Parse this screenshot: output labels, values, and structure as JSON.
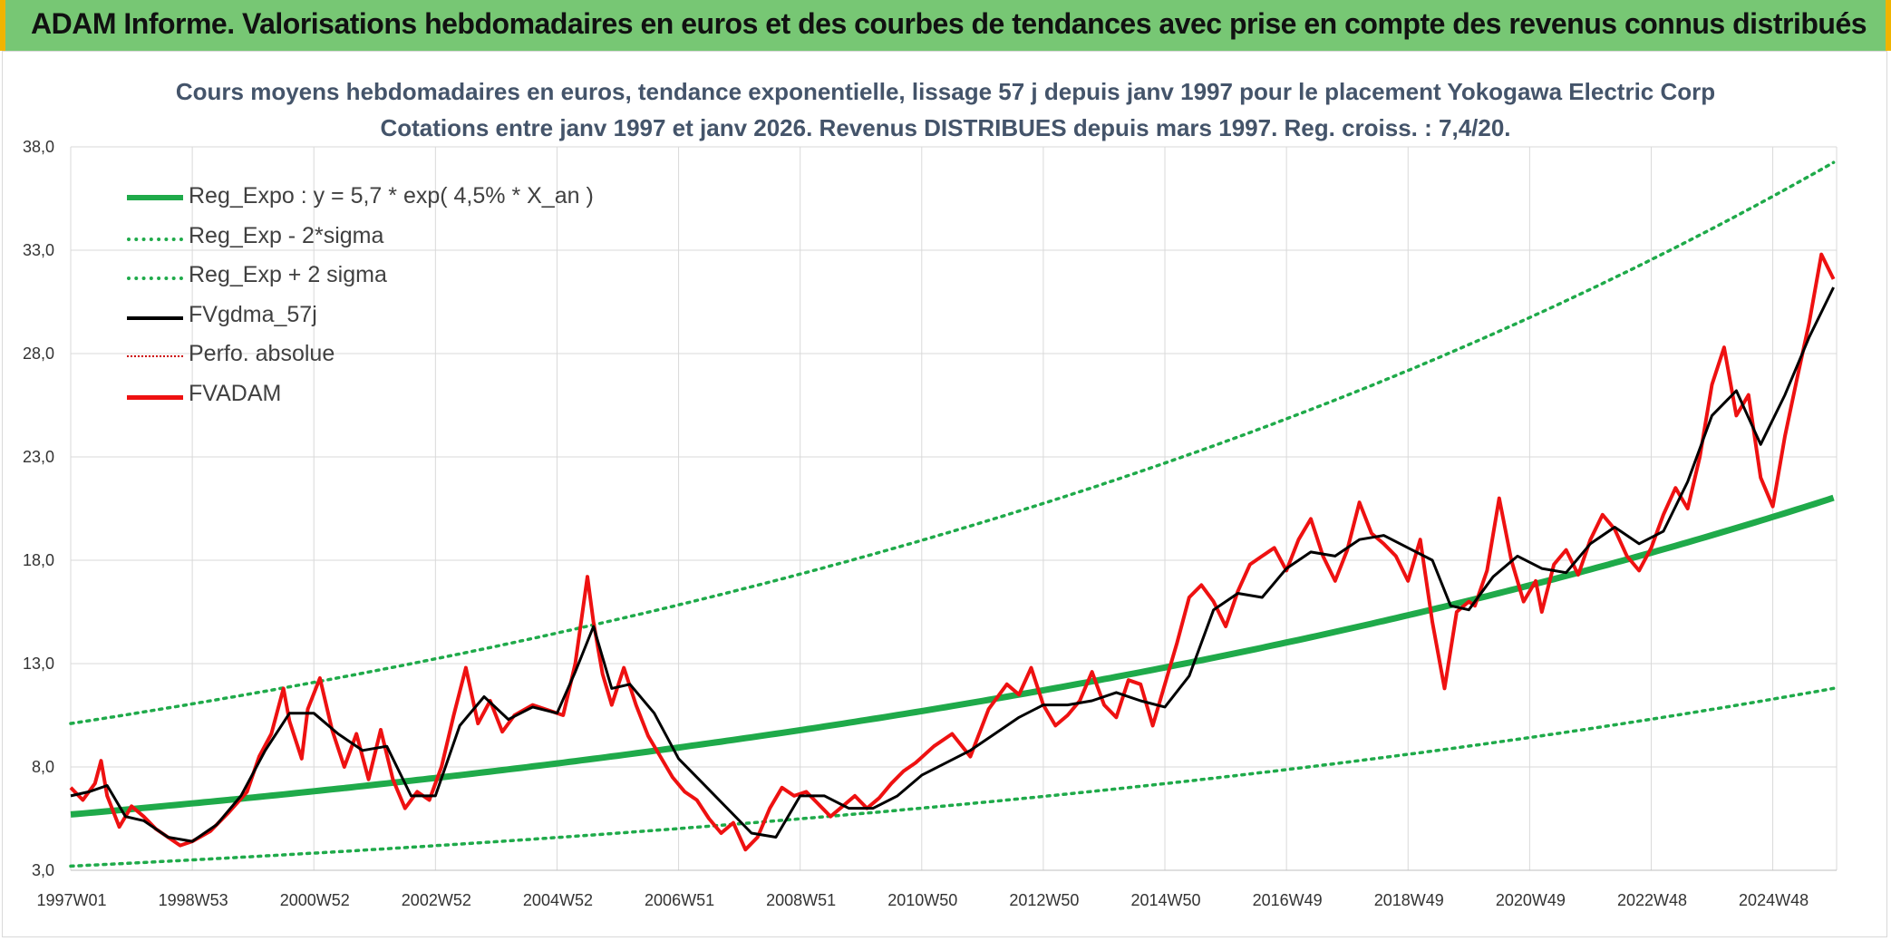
{
  "banner": {
    "title": "ADAM Informe. Valorisations hebdomadaires en euros et des courbes de tendances avec prise en compte des revenus connus distribués"
  },
  "colors": {
    "banner_bg": "#77c774",
    "banner_side": "#f0b400",
    "trend": "#1faa4a",
    "fvgdma": "#000000",
    "fvadam": "#ee1111",
    "perfo": "#cc0000"
  },
  "chart_data": {
    "type": "line",
    "title": "Cours moyens hebdomadaires en euros, tendance exponentielle, lissage 57 j depuis janv 1997 pour le placement Yokogawa Electric Corp",
    "subtitle": "Cotations entre janv 1997 et janv 2026. Revenus DISTRIBUES depuis mars 1997. Reg. croiss. : 7,4/20.",
    "xlabel": "",
    "ylabel": "",
    "ylim": [
      3.0,
      38.0
    ],
    "xlim": [
      1997.0,
      2026.05
    ],
    "yticks": [
      "38,0",
      "33,0",
      "28,0",
      "23,0",
      "18,0",
      "13,0",
      "8,0",
      "3,0"
    ],
    "ytick_values": [
      38,
      33,
      28,
      23,
      18,
      13,
      8,
      3
    ],
    "xticks": [
      "1997W01",
      "1998W53",
      "2000W52",
      "2002W52",
      "2004W52",
      "2006W51",
      "2008W51",
      "2010W50",
      "2012W50",
      "2014W50",
      "2016W49",
      "2018W49",
      "2020W49",
      "2022W48",
      "2024W48"
    ],
    "xtick_years": [
      1997.0,
      1999.0,
      2001.0,
      2003.0,
      2005.0,
      2007.0,
      2009.0,
      2011.0,
      2013.0,
      2015.0,
      2017.0,
      2019.0,
      2021.0,
      2023.0,
      2025.0
    ],
    "grid": true,
    "legend": [
      {
        "key": "reg_expo",
        "label": "Reg_Expo : y = 5,7 * exp( 4,5% *  X_an )"
      },
      {
        "key": "reg_minus",
        "label": "Reg_Exp - 2*sigma"
      },
      {
        "key": "reg_plus",
        "label": "Reg_Exp + 2 sigma"
      },
      {
        "key": "fvgdma",
        "label": "FVgdma_57j"
      },
      {
        "key": "perfo",
        "label": "Perfo. absolue"
      },
      {
        "key": "fvadam",
        "label": "FVADAM"
      }
    ],
    "series": [
      {
        "name": "Reg_Expo",
        "type": "exp",
        "a": 5.7,
        "rate": 0.045
      },
      {
        "name": "Reg_Exp - 2*sigma",
        "type": "exp",
        "a": 3.2,
        "rate": 0.045
      },
      {
        "name": "Reg_Exp + 2 sigma",
        "type": "exp",
        "a": 10.1,
        "rate": 0.045
      },
      {
        "name": "FVADAM",
        "x": [
          1997.0,
          1997.2,
          1997.4,
          1997.5,
          1997.6,
          1997.8,
          1998.0,
          1998.2,
          1998.4,
          1998.6,
          1998.8,
          1999.0,
          1999.3,
          1999.6,
          1999.9,
          2000.1,
          2000.3,
          2000.5,
          2000.6,
          2000.8,
          2000.9,
          2001.1,
          2001.3,
          2001.5,
          2001.7,
          2001.9,
          2002.1,
          2002.3,
          2002.5,
          2002.7,
          2002.9,
          2003.1,
          2003.3,
          2003.5,
          2003.7,
          2003.9,
          2004.1,
          2004.3,
          2004.6,
          2004.9,
          2005.1,
          2005.3,
          2005.5,
          2005.6,
          2005.75,
          2005.9,
          2006.1,
          2006.3,
          2006.5,
          2006.7,
          2006.9,
          2007.1,
          2007.3,
          2007.5,
          2007.7,
          2007.9,
          2008.1,
          2008.3,
          2008.5,
          2008.7,
          2008.9,
          2009.1,
          2009.3,
          2009.5,
          2009.7,
          2009.9,
          2010.1,
          2010.3,
          2010.5,
          2010.7,
          2010.9,
          2011.2,
          2011.5,
          2011.8,
          2012.1,
          2012.4,
          2012.6,
          2012.8,
          2013.0,
          2013.2,
          2013.4,
          2013.6,
          2013.8,
          2014.0,
          2014.2,
          2014.4,
          2014.6,
          2014.8,
          2015.0,
          2015.2,
          2015.4,
          2015.6,
          2015.8,
          2016.0,
          2016.2,
          2016.4,
          2016.6,
          2016.8,
          2017.0,
          2017.2,
          2017.4,
          2017.6,
          2017.8,
          2018.0,
          2018.2,
          2018.4,
          2018.6,
          2018.8,
          2019.0,
          2019.2,
          2019.4,
          2019.6,
          2019.8,
          2020.0,
          2020.1,
          2020.3,
          2020.5,
          2020.7,
          2020.9,
          2021.1,
          2021.2,
          2021.4,
          2021.6,
          2021.8,
          2022.0,
          2022.2,
          2022.4,
          2022.6,
          2022.8,
          2023.0,
          2023.2,
          2023.4,
          2023.6,
          2023.8,
          2024.0,
          2024.2,
          2024.4,
          2024.6,
          2024.8,
          2025.0,
          2025.2,
          2025.4,
          2025.6,
          2025.8,
          2026.0
        ],
        "y": [
          7.0,
          6.4,
          7.2,
          8.3,
          6.6,
          5.1,
          6.1,
          5.6,
          5.0,
          4.6,
          4.2,
          4.4,
          4.9,
          5.8,
          6.8,
          8.5,
          9.6,
          11.8,
          10.2,
          8.4,
          10.8,
          12.3,
          9.8,
          8.0,
          9.6,
          7.4,
          9.8,
          7.4,
          6.0,
          6.8,
          6.4,
          8.0,
          10.5,
          12.8,
          10.1,
          11.2,
          9.7,
          10.5,
          11.0,
          10.7,
          10.5,
          13.0,
          17.2,
          15.0,
          12.5,
          11.0,
          12.8,
          11.0,
          9.5,
          8.5,
          7.5,
          6.8,
          6.4,
          5.5,
          4.8,
          5.3,
          4.0,
          4.6,
          6.0,
          7.0,
          6.6,
          6.8,
          6.2,
          5.6,
          6.1,
          6.6,
          6.0,
          6.5,
          7.2,
          7.8,
          8.2,
          9.0,
          9.6,
          8.5,
          10.8,
          12.0,
          11.5,
          12.8,
          11.0,
          10.0,
          10.5,
          11.2,
          12.6,
          11.0,
          10.4,
          12.2,
          12.0,
          10.0,
          12.0,
          14.0,
          16.2,
          16.8,
          16.0,
          14.8,
          16.5,
          17.8,
          18.2,
          18.6,
          17.5,
          19.0,
          20.0,
          18.2,
          17.0,
          18.5,
          20.8,
          19.3,
          18.8,
          18.2,
          17.0,
          19.0,
          15.0,
          11.8,
          15.5,
          16.0,
          15.8,
          17.5,
          21.0,
          18.0,
          16.0,
          17.0,
          15.5,
          17.8,
          18.5,
          17.3,
          19.0,
          20.2,
          19.5,
          18.2,
          17.5,
          18.6,
          20.2,
          21.5,
          20.5,
          23.0,
          26.5,
          28.3,
          25.0,
          26.0,
          22.0,
          20.6,
          24.0,
          26.8,
          29.5,
          32.8,
          31.6
        ],
        "color": "#ee1111"
      },
      {
        "name": "FVgdma_57j",
        "x": [
          1997.0,
          1997.3,
          1997.6,
          1997.9,
          1998.2,
          1998.6,
          1999.0,
          1999.4,
          1999.8,
          2000.2,
          2000.6,
          2001.0,
          2001.4,
          2001.8,
          2002.2,
          2002.6,
          2003.0,
          2003.4,
          2003.8,
          2004.2,
          2004.6,
          2005.0,
          2005.3,
          2005.6,
          2005.9,
          2006.2,
          2006.6,
          2007.0,
          2007.4,
          2007.8,
          2008.2,
          2008.6,
          2009.0,
          2009.4,
          2009.8,
          2010.2,
          2010.6,
          2011.0,
          2011.4,
          2011.8,
          2012.2,
          2012.6,
          2013.0,
          2013.4,
          2013.8,
          2014.2,
          2014.6,
          2015.0,
          2015.4,
          2015.8,
          2016.2,
          2016.6,
          2017.0,
          2017.4,
          2017.8,
          2018.2,
          2018.6,
          2019.0,
          2019.4,
          2019.7,
          2020.0,
          2020.4,
          2020.8,
          2021.2,
          2021.6,
          2022.0,
          2022.4,
          2022.8,
          2023.2,
          2023.6,
          2024.0,
          2024.4,
          2024.8,
          2025.2,
          2025.6,
          2026.0
        ],
        "y": [
          6.6,
          6.8,
          7.1,
          5.6,
          5.4,
          4.6,
          4.4,
          5.2,
          6.6,
          8.8,
          10.6,
          10.6,
          9.6,
          8.8,
          9.0,
          6.6,
          6.6,
          10.0,
          11.4,
          10.3,
          10.9,
          10.6,
          12.6,
          14.8,
          11.8,
          12.0,
          10.6,
          8.4,
          7.2,
          6.0,
          4.8,
          4.6,
          6.6,
          6.6,
          6.0,
          6.0,
          6.6,
          7.6,
          8.2,
          8.8,
          9.6,
          10.4,
          11.0,
          11.0,
          11.2,
          11.6,
          11.2,
          10.9,
          12.4,
          15.6,
          16.4,
          16.2,
          17.6,
          18.4,
          18.2,
          19.0,
          19.2,
          18.6,
          18.0,
          15.8,
          15.6,
          17.2,
          18.2,
          17.6,
          17.4,
          18.8,
          19.6,
          18.8,
          19.4,
          21.8,
          25.0,
          26.2,
          23.6,
          26.0,
          28.8,
          31.2
        ],
        "color": "#000000"
      }
    ]
  }
}
